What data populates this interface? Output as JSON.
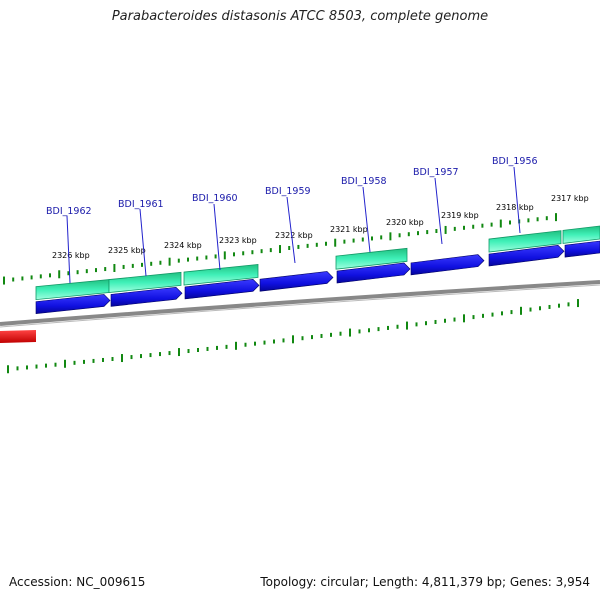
{
  "title": "Parabacteroides distasonis ATCC 8503, complete genome",
  "footer": {
    "accession": "Accession: NC_009615",
    "summary": "Topology: circular; Length: 4,811,379 bp; Genes: 3,954"
  },
  "kbp_ticks": [
    "2326 kbp",
    "2325 kbp",
    "2324 kbp",
    "2323 kbp",
    "2322 kbp",
    "2321 kbp",
    "2320 kbp",
    "2319 kbp",
    "2318 kbp",
    "2317 kbp"
  ],
  "genes": [
    "BDI_1962",
    "BDI_1961",
    "BDI_1960",
    "BDI_1959",
    "BDI_1958",
    "BDI_1957",
    "BDI_1956"
  ],
  "colors": {
    "cds": "#1010e0",
    "gene": "#20e0a0",
    "rna": "#ee1111",
    "tick": "#118811",
    "backbone": "#888888",
    "label_line": "#2222cc"
  }
}
